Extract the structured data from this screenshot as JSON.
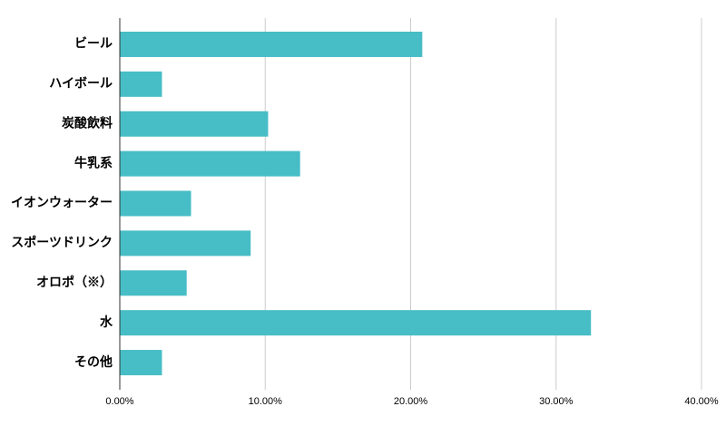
{
  "chart_data": {
    "type": "bar",
    "orientation": "horizontal",
    "categories": [
      "ビール",
      "ハイボール",
      "炭酸飲料",
      "牛乳系",
      "イオンウォーター",
      "スポーツドリンク",
      "オロポ（※）",
      "水",
      "その他"
    ],
    "values": [
      20.8,
      2.9,
      10.2,
      12.4,
      4.9,
      9.0,
      4.6,
      32.4,
      2.9
    ],
    "color": "#47bdc6",
    "xlim": [
      0,
      40
    ],
    "xticks": [
      {
        "value": 0,
        "label": "0.00%"
      },
      {
        "value": 10,
        "label": "10.00%"
      },
      {
        "value": 20,
        "label": "20.00%"
      },
      {
        "value": 30,
        "label": "30.00%"
      },
      {
        "value": 40,
        "label": "40.00%"
      }
    ],
    "grid": true
  }
}
